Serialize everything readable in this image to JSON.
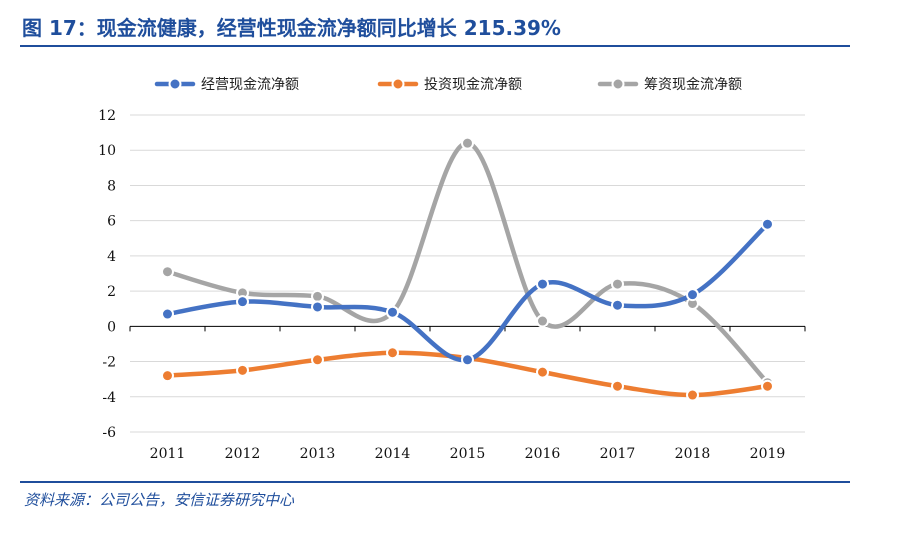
{
  "figure": {
    "title": "图 17：现金流健康，经营性现金流净额同比增长 215.39%",
    "source": "资料来源：公司公告，安信证券研究中心"
  },
  "chart_data": {
    "type": "line",
    "categories": [
      "2011",
      "2012",
      "2013",
      "2014",
      "2015",
      "2016",
      "2017",
      "2018",
      "2019"
    ],
    "series": [
      {
        "name": "经营现金流净额",
        "color": "#4472c4",
        "values": [
          0.7,
          1.4,
          1.1,
          0.8,
          -1.9,
          2.4,
          1.2,
          1.8,
          5.8
        ]
      },
      {
        "name": "投资现金流净额",
        "color": "#ed7d31",
        "values": [
          -2.8,
          -2.5,
          -1.9,
          -1.5,
          -1.8,
          -2.6,
          -3.4,
          -3.9,
          -3.4
        ]
      },
      {
        "name": "筹资现金流净额",
        "color": "#a5a5a5",
        "values": [
          3.1,
          1.9,
          1.7,
          0.8,
          10.4,
          0.3,
          2.4,
          1.3,
          -3.2
        ]
      }
    ],
    "yticks": [
      "12",
      "10",
      "8",
      "6",
      "4",
      "2",
      "0",
      "-2",
      "-4",
      "-6"
    ],
    "ylim": [
      -6,
      12
    ],
    "smooth": true,
    "grid": true,
    "legend_position": "top"
  }
}
